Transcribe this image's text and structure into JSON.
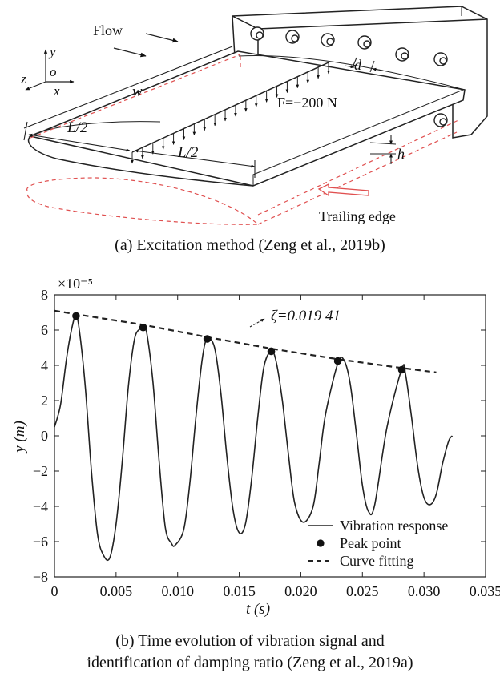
{
  "panel_a": {
    "flow_label": "Flow",
    "axis_y": "y",
    "axis_o": "o",
    "axis_z": "z",
    "axis_x": "x",
    "span_label": "w",
    "half_label_1": "L/2",
    "half_label_2": "L/2",
    "force_label": "F=−200 N",
    "d_label": "d",
    "h_label": "h",
    "trailing_edge_label": "Trailing edge",
    "caption": "(a) Excitation method (Zeng et al., 2019b)"
  },
  "panel_b": {
    "caption_line1": "(b) Time evolution of vibration signal and",
    "caption_line2": "identification of damping ratio (Zeng et al., 2019a)"
  },
  "chart_data": {
    "type": "line",
    "multiplier_label": "×10⁻⁵",
    "xlabel": "t (s)",
    "ylabel": "y (m)",
    "xlim": [
      0,
      0.035
    ],
    "ylim": [
      -8,
      8
    ],
    "x_ticks": [
      "0",
      "0.005",
      "0.010",
      "0.015",
      "0.020",
      "0.025",
      "0.030",
      "0.035"
    ],
    "y_ticks": [
      "8",
      "6",
      "4",
      "2",
      "0",
      "−2",
      "−4",
      "−6",
      "−8"
    ],
    "annotation": "ζ=0.019 41",
    "series": [
      {
        "name": "Vibration response",
        "style": "solid",
        "x": [
          0.0,
          0.0005,
          0.001,
          0.0015,
          0.00175,
          0.002,
          0.0025,
          0.003,
          0.0035,
          0.004,
          0.0045,
          0.005,
          0.0055,
          0.006,
          0.0065,
          0.007,
          0.0072,
          0.0075,
          0.008,
          0.0085,
          0.009,
          0.0095,
          0.0098,
          0.0105,
          0.011,
          0.0115,
          0.012,
          0.0124,
          0.013,
          0.0135,
          0.014,
          0.0145,
          0.015,
          0.0155,
          0.016,
          0.0165,
          0.017,
          0.0176,
          0.018,
          0.0185,
          0.019,
          0.0195,
          0.0202,
          0.021,
          0.0215,
          0.022,
          0.023,
          0.0235,
          0.024,
          0.0245,
          0.025,
          0.0255,
          0.026,
          0.027,
          0.0282,
          0.0285,
          0.029,
          0.0295,
          0.03,
          0.0305,
          0.031,
          0.0315,
          0.032,
          0.0323
        ],
        "y": [
          0.5,
          1.8,
          4.5,
          6.4,
          6.8,
          6.1,
          2.8,
          -2.0,
          -5.6,
          -6.8,
          -6.9,
          -5.0,
          -1.5,
          2.8,
          5.5,
          6.1,
          6.2,
          5.8,
          3.0,
          -1.5,
          -5.2,
          -6.1,
          -6.2,
          -5.3,
          -2.6,
          1.2,
          4.4,
          5.5,
          5.0,
          2.5,
          -1.2,
          -4.2,
          -5.5,
          -5.0,
          -2.5,
          1.0,
          3.9,
          4.8,
          4.2,
          2.0,
          -1.1,
          -3.8,
          -4.9,
          -4.0,
          -1.5,
          1.2,
          4.1,
          4.3,
          3.0,
          0.2,
          -2.8,
          -4.3,
          -3.9,
          0.5,
          3.8,
          3.5,
          1.0,
          -1.8,
          -3.5,
          -3.9,
          -3.3,
          -1.6,
          -0.3,
          0.0
        ]
      },
      {
        "name": "Peak point",
        "style": "markers",
        "x": [
          0.00175,
          0.0072,
          0.0124,
          0.0176,
          0.023,
          0.0282
        ],
        "y": [
          6.8,
          6.15,
          5.5,
          4.8,
          4.25,
          3.75
        ]
      },
      {
        "name": "Curve fitting",
        "style": "dashed",
        "x": [
          0.0,
          0.00175,
          0.0072,
          0.0124,
          0.0176,
          0.023,
          0.0282,
          0.031
        ],
        "y": [
          7.1,
          6.9,
          6.3,
          5.6,
          4.95,
          4.35,
          3.85,
          3.6
        ]
      }
    ],
    "legend_position": "bottom-right"
  }
}
